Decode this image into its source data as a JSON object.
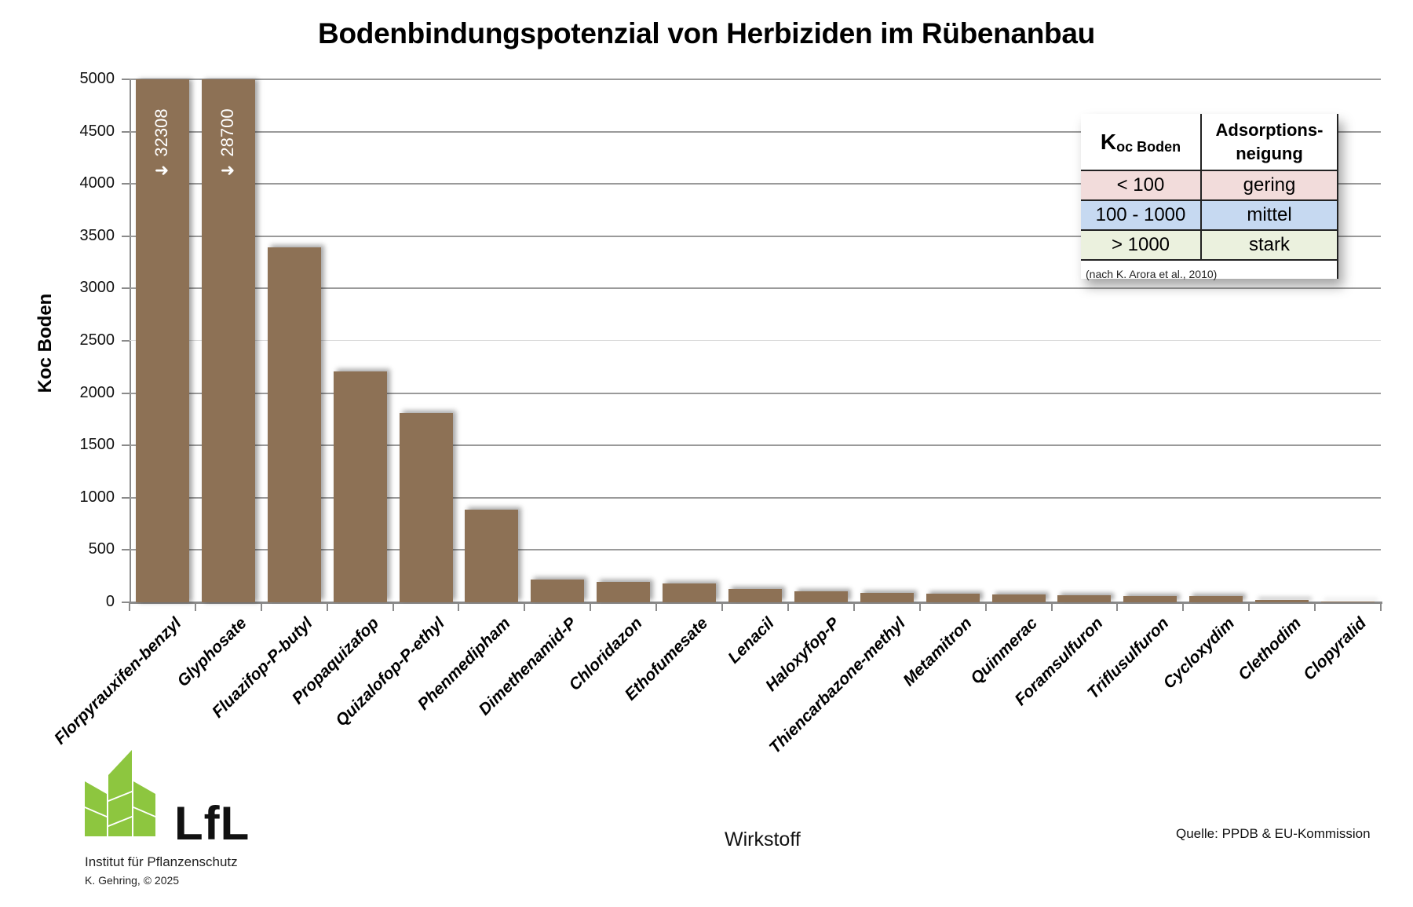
{
  "chart_data": {
    "type": "bar",
    "title": "Bodenbindungspotenzial von Herbiziden im Rübenanbau",
    "xlabel": "Wirkstoff",
    "ylabel": "Koc Boden",
    "ylim": [
      0,
      5000
    ],
    "yticks": [
      0,
      500,
      1000,
      1500,
      2000,
      2500,
      3000,
      3500,
      4000,
      4500,
      5000
    ],
    "grid": true,
    "bar_color": "#8d7155",
    "categories": [
      "Florpyrauxifen-benzyl",
      "Glyphosate",
      "Fluazifop-P-butyl",
      "Propaquizafop",
      "Quizalofop-P-ethyl",
      "Phenmedipham",
      "Dimethenamid-P",
      "Chloridazon",
      "Ethofumesate",
      "Lenacil",
      "Haloxyfop-P",
      "Thiencarbazone-methyl",
      "Metamitron",
      "Quinmerac",
      "Foramsulfuron",
      "Triflusulfuron",
      "Cycloxydim",
      "Clethodim",
      "Clopyralid"
    ],
    "values": [
      32308,
      28700,
      3390,
      2210,
      1810,
      888,
      220,
      195,
      180,
      125,
      104,
      93,
      83,
      77,
      70,
      60,
      60,
      20,
      5
    ],
    "annotations": [
      {
        "category": "Florpyrauxifen-benzyl",
        "text": "32308",
        "icon": "arrow-up-icon",
        "note": "bar exceeds axis maximum"
      },
      {
        "category": "Glyphosate",
        "text": "28700",
        "icon": "arrow-up-icon",
        "note": "bar exceeds axis maximum"
      }
    ],
    "legend_position": "top-right"
  },
  "legend_table": {
    "header": {
      "col1_main": "K",
      "col1_sub": "oc Boden",
      "col2_line1": "Adsorptions-",
      "col2_line2": "neigung"
    },
    "rows": [
      {
        "range": "< 100",
        "level": "gering",
        "color": "#f2dcdb"
      },
      {
        "range": "100 - 1000",
        "level": "mittel",
        "color": "#c6d9f1"
      },
      {
        "range": "> 1000",
        "level": "stark",
        "color": "#ebf1de"
      }
    ],
    "note": "(nach K. Arora et al., 2010)"
  },
  "footer": {
    "source": "Quelle: PPDB & EU-Kommission",
    "logo_text": "LfL",
    "institute": "Institut für Pflanzenschutz",
    "author": "K. Gehring, © 2025",
    "logo_color": "#8dc63f"
  }
}
